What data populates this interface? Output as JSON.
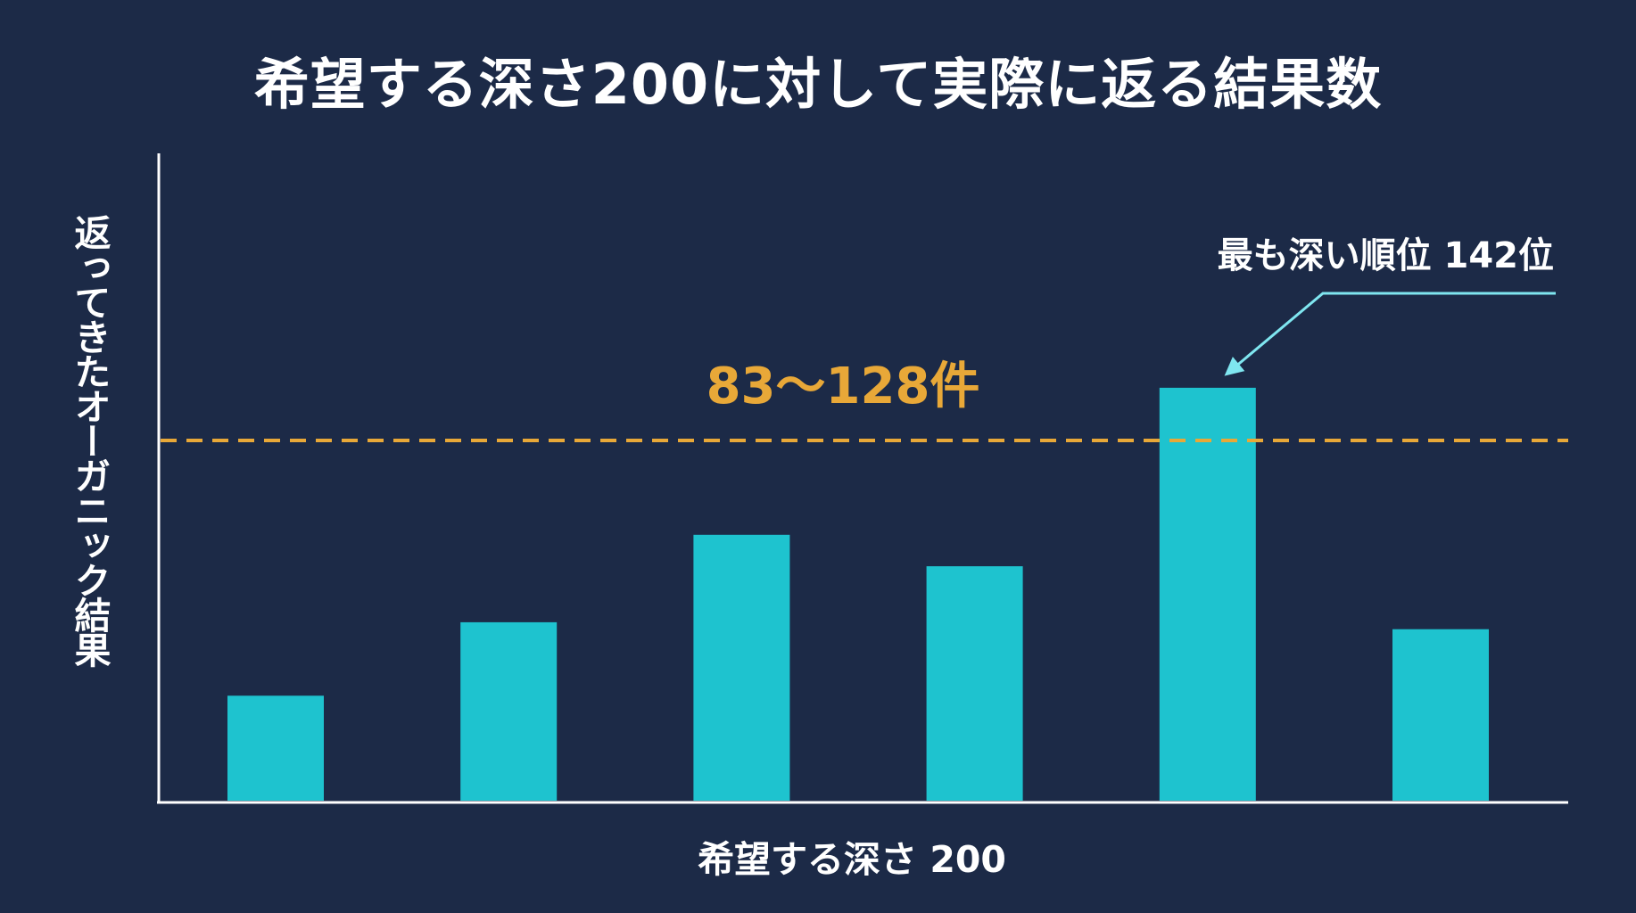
{
  "chart_data": {
    "type": "bar",
    "title": "希望する深さ200に対して実際に返る結果数",
    "xlabel": "希望する深さ 200",
    "ylabel": "返ってきたオーガニック結果",
    "values": [
      30,
      51,
      76,
      67,
      118,
      49
    ],
    "ylim": [
      0,
      185
    ],
    "reference_line": {
      "label": "83〜128件",
      "style": "dashed",
      "color": "#e8a838"
    },
    "annotation": {
      "text": "最も深い順位 142位",
      "target_bar_index": 4,
      "color": "#7fe6f0"
    },
    "bar_color": "#1ec3cf",
    "grid": false
  }
}
